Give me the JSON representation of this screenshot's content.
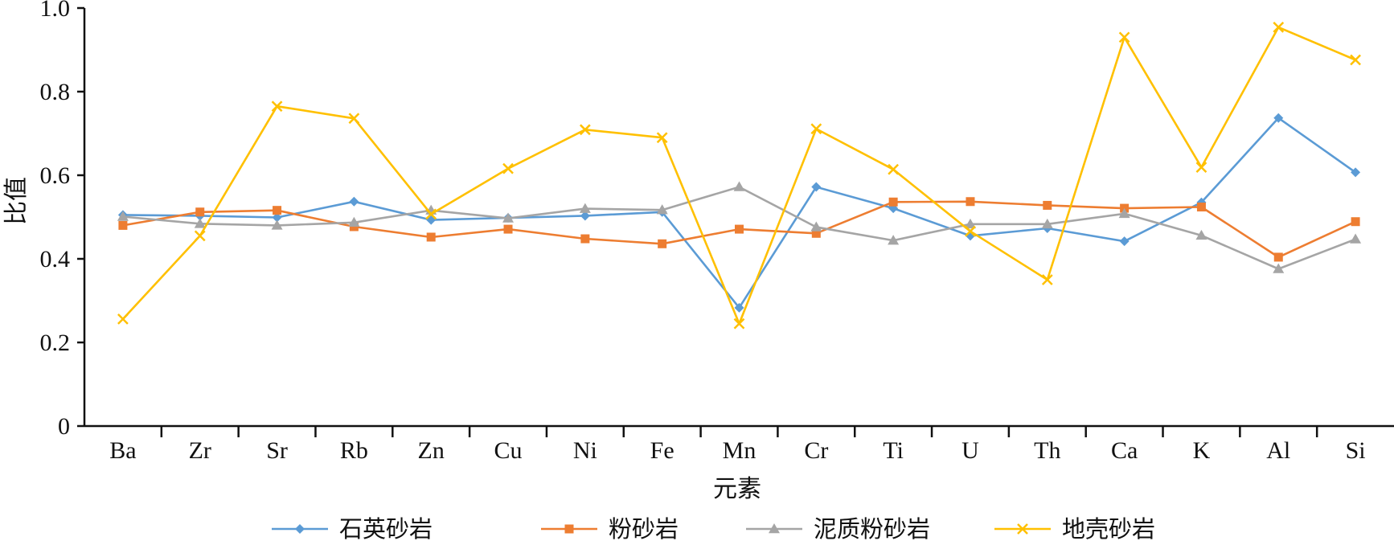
{
  "chart_data": {
    "type": "line",
    "title": "",
    "xlabel": "元素",
    "ylabel": "比值",
    "ylim": [
      0,
      1.0
    ],
    "y_ticks": [
      "0",
      "0.2",
      "0.4",
      "0.6",
      "0.8",
      "1.0"
    ],
    "y_tick_values": [
      0,
      0.2,
      0.4,
      0.6,
      0.8,
      1.0
    ],
    "categories": [
      "Ba",
      "Zr",
      "Sr",
      "Rb",
      "Zn",
      "Cu",
      "Ni",
      "Fe",
      "Mn",
      "Cr",
      "Ti",
      "U",
      "Th",
      "Ca",
      "K",
      "Al",
      "Si"
    ],
    "grid": false,
    "legend_position": "bottom",
    "series": [
      {
        "name": "石英砂岩",
        "color": "#5B9BD5",
        "marker": "diamond",
        "values": [
          0.505,
          0.503,
          0.499,
          0.537,
          0.493,
          0.498,
          0.503,
          0.512,
          0.283,
          0.572,
          0.521,
          0.455,
          0.473,
          0.442,
          0.535,
          0.737,
          0.607
        ]
      },
      {
        "name": "粉砂岩",
        "color": "#ED7D31",
        "marker": "square",
        "values": [
          0.48,
          0.512,
          0.516,
          0.477,
          0.452,
          0.471,
          0.448,
          0.436,
          0.471,
          0.461,
          0.536,
          0.537,
          0.528,
          0.521,
          0.524,
          0.404,
          0.489
        ]
      },
      {
        "name": "泥质粉砂岩",
        "color": "#A5A5A5",
        "marker": "triangle",
        "values": [
          0.501,
          0.484,
          0.48,
          0.487,
          0.516,
          0.497,
          0.52,
          0.517,
          0.572,
          0.476,
          0.444,
          0.483,
          0.483,
          0.508,
          0.456,
          0.376,
          0.447
        ]
      },
      {
        "name": "地壳砂岩",
        "color": "#FFC000",
        "marker": "x",
        "values": [
          0.256,
          0.455,
          0.765,
          0.736,
          0.507,
          0.616,
          0.709,
          0.69,
          0.245,
          0.711,
          0.614,
          0.466,
          0.35,
          0.93,
          0.619,
          0.954,
          0.876
        ]
      }
    ]
  }
}
